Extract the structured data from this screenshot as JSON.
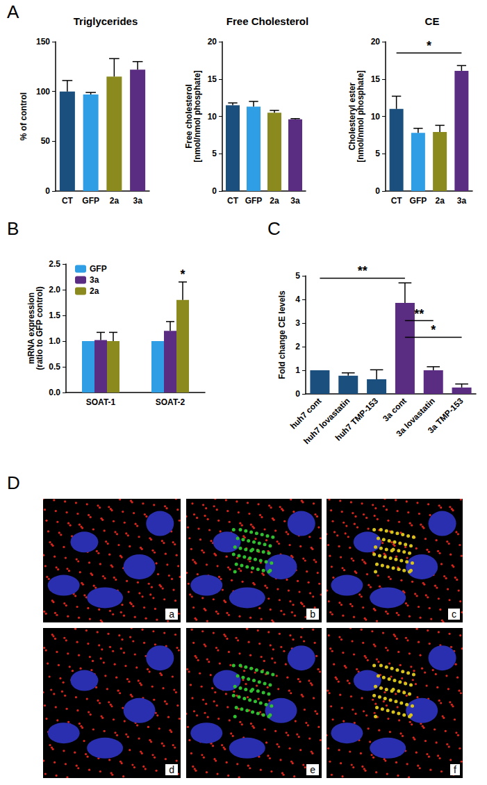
{
  "panels": [
    "A",
    "B",
    "C",
    "D"
  ],
  "panel_d": {
    "images": [
      "a",
      "b",
      "c",
      "d",
      "e",
      "f"
    ]
  },
  "chart_data": [
    {
      "type": "bar",
      "title": "Triglycerides",
      "ylabel": "% of control",
      "categories": [
        "CT",
        "GFP",
        "2a",
        "3a"
      ],
      "values": [
        100,
        97,
        115,
        122
      ],
      "errors": [
        11,
        2,
        18,
        8
      ],
      "colors": [
        "#1b4f7d",
        "#2f9ee5",
        "#8a8a1e",
        "#5a2d82"
      ],
      "ylim": [
        0,
        150
      ],
      "yticks": [
        0,
        50,
        100,
        150
      ],
      "grid": false
    },
    {
      "type": "bar",
      "title": "Free Cholesterol",
      "ylabel": "Free cholesterol\n[nmol/nmol phosphate]",
      "categories": [
        "CT",
        "GFP",
        "2a",
        "3a"
      ],
      "values": [
        11.5,
        11.3,
        10.5,
        9.6
      ],
      "errors": [
        0.3,
        0.7,
        0.3,
        0.1
      ],
      "colors": [
        "#1b4f7d",
        "#2f9ee5",
        "#8a8a1e",
        "#5a2d82"
      ],
      "ylim": [
        0,
        20
      ],
      "yticks": [
        0,
        5,
        10,
        15,
        20
      ],
      "grid": false
    },
    {
      "type": "bar",
      "title": "CE",
      "ylabel": "Cholesteryl ester\n[nmol/nmol phosphate]",
      "categories": [
        "CT",
        "GFP",
        "2a",
        "3a"
      ],
      "values": [
        11,
        7.8,
        7.9,
        16.1
      ],
      "errors": [
        1.7,
        0.6,
        0.9,
        0.7
      ],
      "colors": [
        "#1b4f7d",
        "#2f9ee5",
        "#8a8a1e",
        "#5a2d82"
      ],
      "ylim": [
        0,
        20
      ],
      "yticks": [
        0,
        5,
        10,
        15,
        20
      ],
      "grid": false,
      "annotations": [
        {
          "from": "CT",
          "to": "3a",
          "label": "*",
          "y": 18.5
        }
      ]
    },
    {
      "type": "bar",
      "ylabel": "mRNA expression\n(ratio to GFP control)",
      "categories": [
        "SOAT-1",
        "SOAT-2"
      ],
      "series": [
        {
          "name": "GFP",
          "color": "#2f9ee5",
          "values": [
            1,
            1
          ],
          "errors": [
            0,
            0
          ]
        },
        {
          "name": "3a",
          "color": "#5a2d82",
          "values": [
            1.02,
            1.2
          ],
          "errors": [
            0.15,
            0.18
          ]
        },
        {
          "name": "2a",
          "color": "#8a8a1e",
          "values": [
            1.0,
            1.8
          ],
          "errors": [
            0.17,
            0.35
          ]
        }
      ],
      "ylim": [
        0,
        2.5
      ],
      "yticks": [
        {
          "value": 0,
          "label": "0.0"
        },
        {
          "value": 0.5,
          "label": "0.5"
        },
        {
          "value": 1,
          "label": "1.0"
        },
        {
          "value": 1.5,
          "label": "1.5"
        },
        {
          "value": 2,
          "label": "2.0"
        },
        {
          "value": 2.5,
          "label": "2.5"
        }
      ],
      "grid": false,
      "legend": "top-left",
      "annotations": [
        {
          "category": "SOAT-2",
          "series": "2a",
          "label": "*"
        }
      ]
    },
    {
      "type": "bar",
      "ylabel": "Fold change CE levels",
      "categories": [
        "huh7 cont",
        "huh7 lovastatin",
        "huh7 TMP-153",
        "3a cont",
        "3a lovastatin",
        "3a TMP-153"
      ],
      "values": [
        1,
        0.77,
        0.62,
        3.85,
        1.0,
        0.27
      ],
      "errors": [
        0,
        0.12,
        0.4,
        0.85,
        0.15,
        0.15
      ],
      "colors": [
        "#1b4f7d",
        "#1b4f7d",
        "#1b4f7d",
        "#5a2d82",
        "#5a2d82",
        "#5a2d82"
      ],
      "ylim": [
        0,
        5
      ],
      "yticks": [
        0,
        1,
        2,
        3,
        4,
        5
      ],
      "grid": false,
      "annotations": [
        {
          "from": "huh7 cont",
          "to": "3a cont",
          "label": "**",
          "y": 4.9
        },
        {
          "from": "3a cont",
          "to": "3a lovastatin",
          "label": "**",
          "y": 3.1
        },
        {
          "from": "3a cont",
          "to": "3a TMP-153",
          "label": "*",
          "y": 2.4
        }
      ]
    }
  ]
}
